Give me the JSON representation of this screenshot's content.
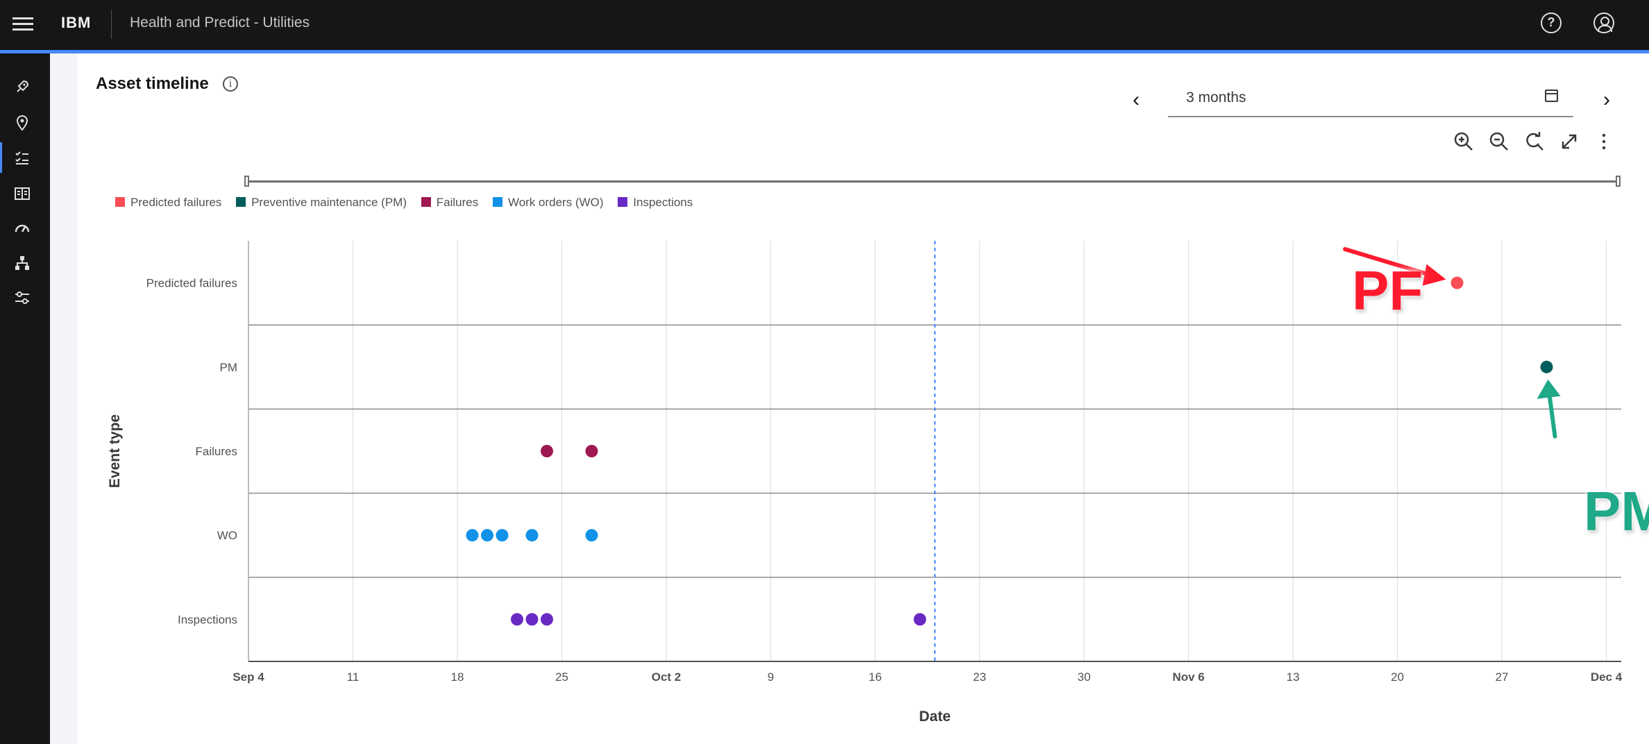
{
  "header": {
    "brand": "IBM",
    "app_title": "Health and Predict - Utilities",
    "help_icon": "help-icon",
    "user_icon": "user-icon"
  },
  "siderail": {
    "items": [
      {
        "icon": "rocket-icon"
      },
      {
        "icon": "location-icon"
      },
      {
        "icon": "checklist-icon",
        "active": true
      },
      {
        "icon": "catalog-icon"
      },
      {
        "icon": "dashboard-gauge-icon"
      },
      {
        "icon": "hierarchy-icon"
      },
      {
        "icon": "settings-sliders-icon"
      }
    ]
  },
  "panel": {
    "title": "Asset timeline",
    "info_icon": "information-icon",
    "range": {
      "value": "3 months",
      "prev_icon": "chevron-left-icon",
      "next_icon": "chevron-right-icon",
      "calendar_icon": "calendar-icon"
    },
    "toolbar": [
      "zoom-in-icon",
      "zoom-out-icon",
      "reset-zoom-icon",
      "expand-icon",
      "overflow-menu-icon"
    ]
  },
  "chart_data": {
    "type": "scatter",
    "title": "",
    "xlabel": "Date",
    "ylabel": "Event type",
    "x_tick_labels": [
      "Sep 4",
      "11",
      "18",
      "25",
      "Oct 2",
      "9",
      "16",
      "23",
      "30",
      "Nov 6",
      "13",
      "20",
      "27",
      "Dec 4"
    ],
    "x_range": [
      "Sep 4",
      "Dec 5"
    ],
    "categories": [
      "Predicted failures",
      "PM",
      "Failures",
      "WO",
      "Inspections"
    ],
    "reference_line_date": "Oct 20",
    "legend": [
      {
        "name": "Predicted failures",
        "color": "#fa4d56"
      },
      {
        "name": "Preventive maintenance (PM)",
        "color": "#005d5d"
      },
      {
        "name": "Failures",
        "color": "#9f1853"
      },
      {
        "name": "Work orders (WO)",
        "color": "#1192e8"
      },
      {
        "name": "Inspections",
        "color": "#6929c4"
      }
    ],
    "series": [
      {
        "name": "Predicted failures",
        "category": "Predicted failures",
        "color": "#fa4d56",
        "dates": [
          "Nov 24"
        ]
      },
      {
        "name": "Preventive maintenance (PM)",
        "category": "PM",
        "color": "#005d5d",
        "dates": [
          "Nov 30"
        ]
      },
      {
        "name": "Failures",
        "category": "Failures",
        "color": "#9f1853",
        "dates": [
          "Sep 24",
          "Sep 27"
        ]
      },
      {
        "name": "Work orders (WO)",
        "category": "WO",
        "color": "#1192e8",
        "dates": [
          "Sep 19",
          "Sep 20",
          "Sep 21",
          "Sep 23",
          "Sep 27"
        ]
      },
      {
        "name": "Inspections",
        "category": "Inspections",
        "color": "#6929c4",
        "dates": [
          "Sep 22",
          "Sep 23",
          "Sep 24",
          "Oct 19"
        ]
      }
    ],
    "grid": true,
    "legend_position": "top-left"
  },
  "annotations": {
    "pf_label": "PF",
    "pm_label": "PM",
    "pf_color": "#ff1a2e",
    "pm_color": "#1fa989"
  }
}
